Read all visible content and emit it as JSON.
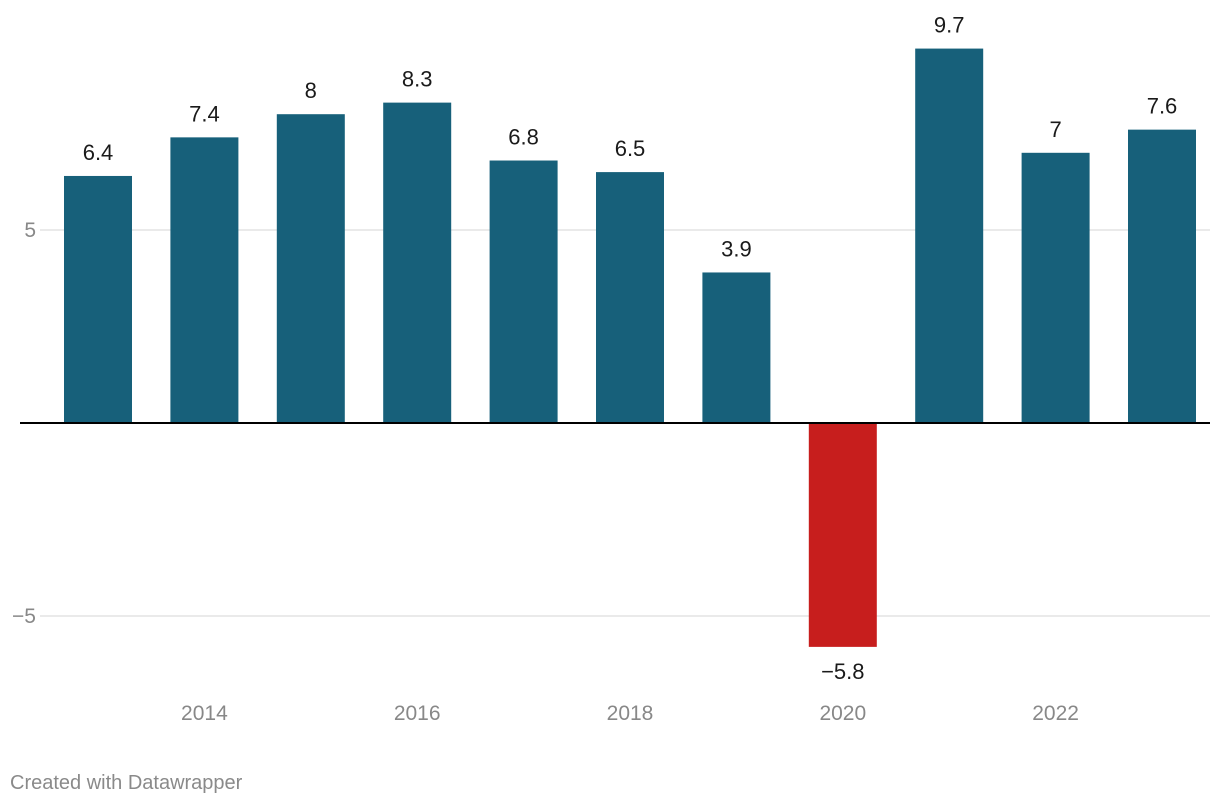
{
  "chart_data": {
    "type": "bar",
    "categories": [
      "2013",
      "2014",
      "2015",
      "2016",
      "2017",
      "2018",
      "2019",
      "2020",
      "2021",
      "2022",
      "2023"
    ],
    "values": [
      6.4,
      7.4,
      8,
      8.3,
      6.8,
      6.5,
      3.9,
      -5.8,
      9.7,
      7,
      7.6
    ],
    "value_labels": [
      "6.4",
      "7.4",
      "8",
      "8.3",
      "6.8",
      "6.5",
      "3.9",
      "−5.8",
      "9.7",
      "7",
      "7.6"
    ],
    "x_tick_labels": [
      {
        "category": "2014",
        "label": "2014"
      },
      {
        "category": "2016",
        "label": "2016"
      },
      {
        "category": "2018",
        "label": "2018"
      },
      {
        "category": "2020",
        "label": "2020"
      },
      {
        "category": "2022",
        "label": "2022"
      }
    ],
    "y_ticks": [
      {
        "value": 5,
        "label": "5"
      },
      {
        "value": -5,
        "label": "−5"
      }
    ],
    "ylim": [
      -7,
      10.5
    ],
    "colors": {
      "positive": "#17607a",
      "negative": "#c71e1d",
      "gridline": "#e3e3e3",
      "baseline": "#000000",
      "tick_text": "#888888",
      "label_text": "#1a1a1a"
    },
    "title": "",
    "xlabel": "",
    "ylabel": ""
  },
  "footer": {
    "credit": "Created with Datawrapper"
  }
}
